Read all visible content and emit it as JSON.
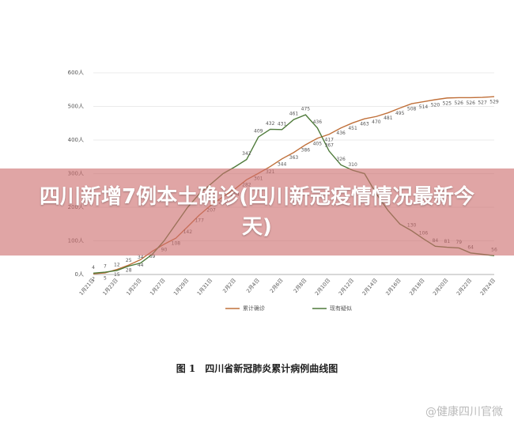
{
  "headline": "四川新增7例本土确诊(四川新冠疫情情况最新今天)",
  "watermark": "@健康四川官微",
  "chart_data": {
    "type": "line",
    "caption": "图 1　四川省新冠肺炎累计病例曲线图",
    "categories": [
      "1月21日",
      null,
      "1月23日",
      null,
      "1月25日",
      null,
      "1月27日",
      null,
      "1月29日",
      null,
      "1月31日",
      null,
      "2月2日",
      null,
      "2月4日",
      null,
      "2月6日",
      null,
      "2月8日",
      null,
      "2月10日",
      null,
      "2月12日",
      null,
      "2月14日",
      null,
      "2月16日",
      null,
      "2月18日",
      null,
      "2月20日",
      null,
      "2月22日",
      null,
      "2月24日"
    ],
    "ylim": [
      0,
      600
    ],
    "yticks": [
      {
        "value": 0,
        "label": "0人"
      },
      {
        "value": 100,
        "label": "100人"
      },
      {
        "value": 200,
        "label": "200人"
      },
      {
        "value": 300,
        "label": "300人"
      },
      {
        "value": 400,
        "label": "400人"
      },
      {
        "value": 500,
        "label": "500人"
      },
      {
        "value": 600,
        "label": "600人"
      }
    ],
    "grid": true,
    "series": [
      {
        "name": "累计确诊",
        "color": "#c0703a",
        "values": [
          2,
          5,
          15,
          28,
          44,
          69,
          90,
          108,
          142,
          177,
          207,
          231,
          254,
          282,
          301,
          321,
          344,
          363,
          386,
          405,
          417,
          436,
          451,
          463,
          470,
          481,
          495,
          508,
          514,
          520,
          525,
          526,
          526,
          527,
          529
        ]
      },
      {
        "name": "现有疑似",
        "color": "#4e7a3a",
        "values": [
          4,
          7,
          12,
          25,
          34,
          60,
          100,
          150,
          200,
          240,
          270,
          300,
          320,
          342,
          409,
          432,
          431,
          461,
          475,
          436,
          367,
          326,
          310,
          300,
          240,
          190,
          150,
          130,
          106,
          84,
          81,
          79,
          64,
          60,
          56
        ],
        "value_labels": [
          "4",
          "7",
          "12",
          "25",
          "34",
          null,
          null,
          null,
          null,
          null,
          null,
          null,
          null,
          "342",
          "409",
          "432",
          "431",
          "461",
          "475",
          "436",
          "367",
          "326",
          "310",
          null,
          null,
          null,
          null,
          "130",
          "106",
          "84",
          "81",
          "79",
          "64",
          null,
          "56"
        ]
      }
    ]
  }
}
